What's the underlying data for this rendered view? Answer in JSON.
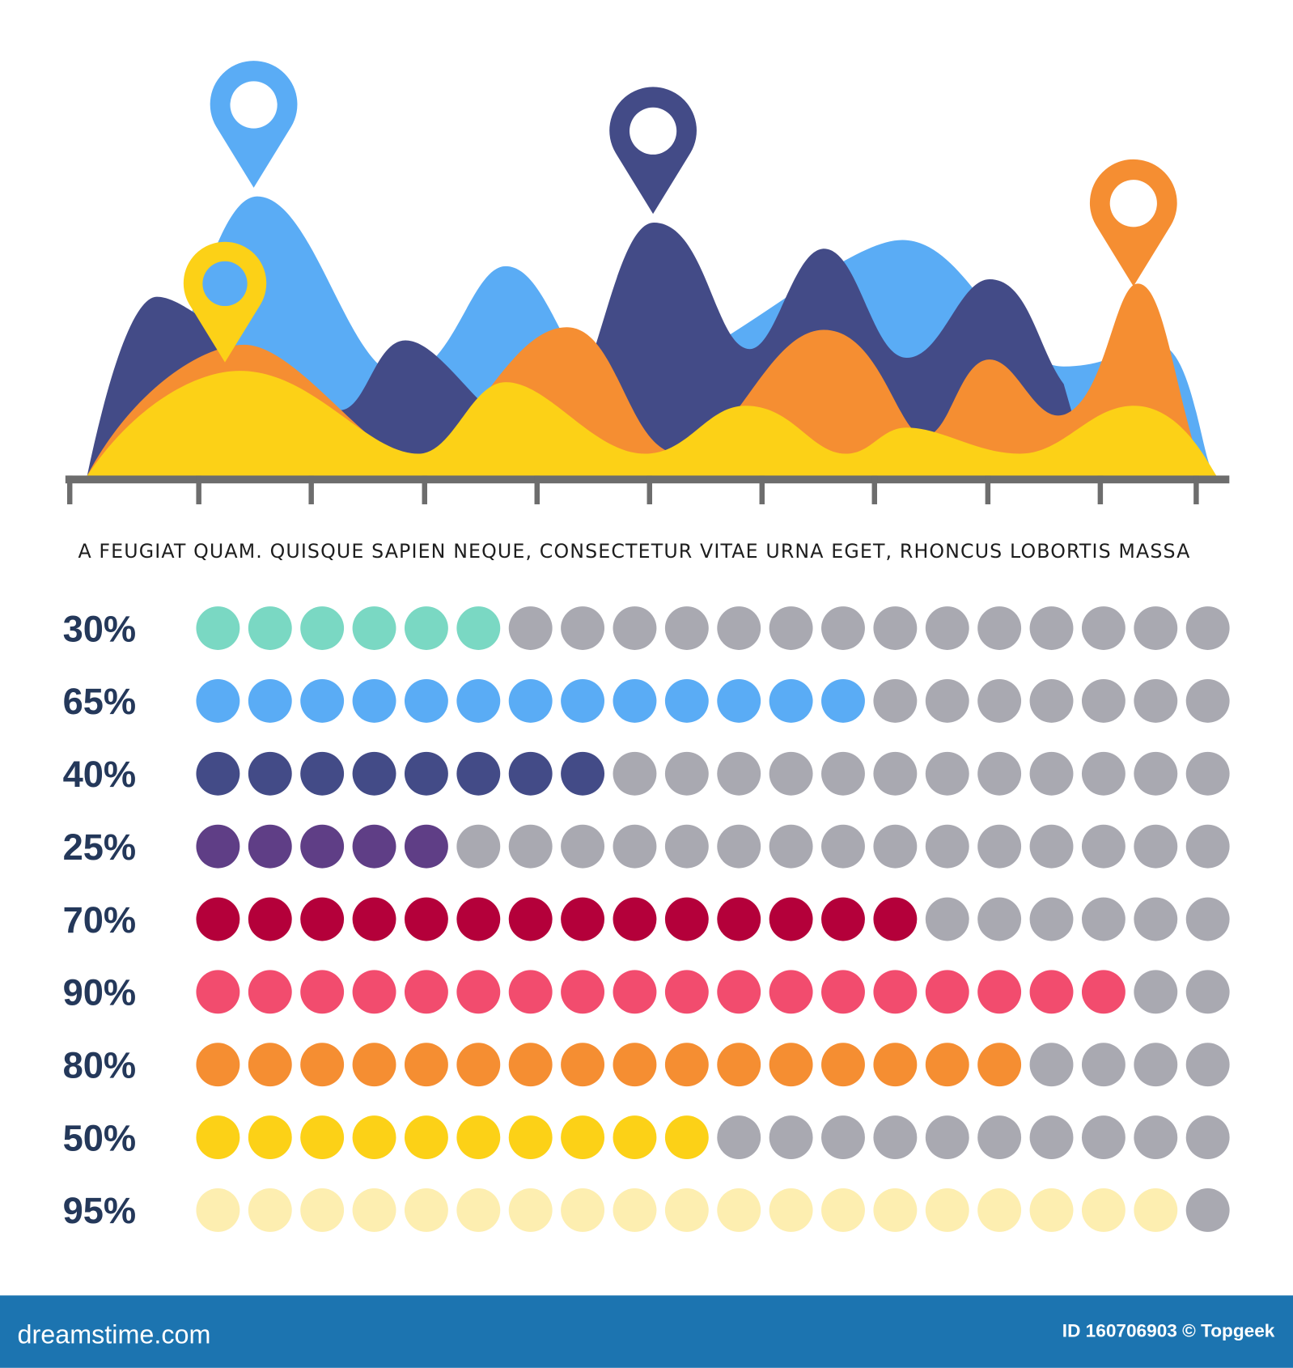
{
  "chart_data": {
    "type": "dot-matrix",
    "caption": "A FEUGIAT QUAM. QUISQUE SAPIEN NEQUE, CONSECTETUR VITAE URNA EGET, RHONCUS LOBORTIS MASSA",
    "values": [
      30,
      65,
      40,
      25,
      70,
      90,
      80,
      50,
      95
    ],
    "value_labels": [
      "30%",
      "65%",
      "40%",
      "25%",
      "70%",
      "90%",
      "80%",
      "50%",
      "95%"
    ],
    "colors": [
      "#7ad8c3",
      "#5aacf5",
      "#434b87",
      "#5f3e86",
      "#b4003a",
      "#f24c6e",
      "#f58e32",
      "#fcd117",
      "#fdeeb0"
    ],
    "empty_color": "#a9a9b1",
    "xlim": [
      0,
      100
    ]
  },
  "footer": {
    "site": "dreamstime.com",
    "id": "ID 160706903 © Topgeek"
  }
}
